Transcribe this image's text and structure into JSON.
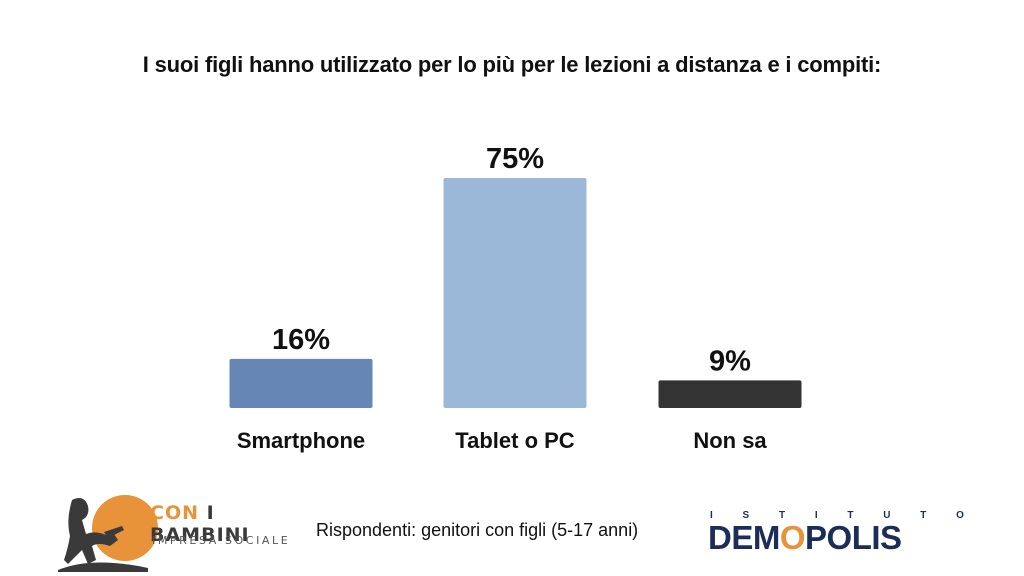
{
  "title": "I suoi figli hanno utilizzato per lo più per le lezioni a distanza e i compiti:",
  "chart_data": {
    "type": "bar",
    "title": "I suoi figli hanno utilizzato per lo più per le lezioni a distanza e i compiti:",
    "categories": [
      "Smartphone",
      "Tablet o PC",
      "Non sa"
    ],
    "values": [
      16,
      75,
      9
    ],
    "value_labels": [
      "16%",
      "75%",
      "9%"
    ],
    "colors": [
      "#6686b6",
      "#9cb8d8",
      "#333333"
    ],
    "xlabel": "",
    "ylabel": "",
    "ylim": [
      0,
      75
    ],
    "grid": false,
    "legend": "none"
  },
  "footer": {
    "footnote": "Rispondenti: genitori con figli (5-17 anni)",
    "logo_left": {
      "name_accent": "CON",
      "name_rest": "I BAMBINI",
      "subtitle": "IMPRESA SOCIALE",
      "accent_color": "#e8923a"
    },
    "logo_right": {
      "top_letters": [
        "I",
        "S",
        "T",
        "I",
        "T",
        "U",
        "T",
        "O"
      ],
      "name_before": "DEM",
      "name_mark": "O",
      "name_after": "POLIS",
      "color": "#1d2d5a"
    }
  }
}
